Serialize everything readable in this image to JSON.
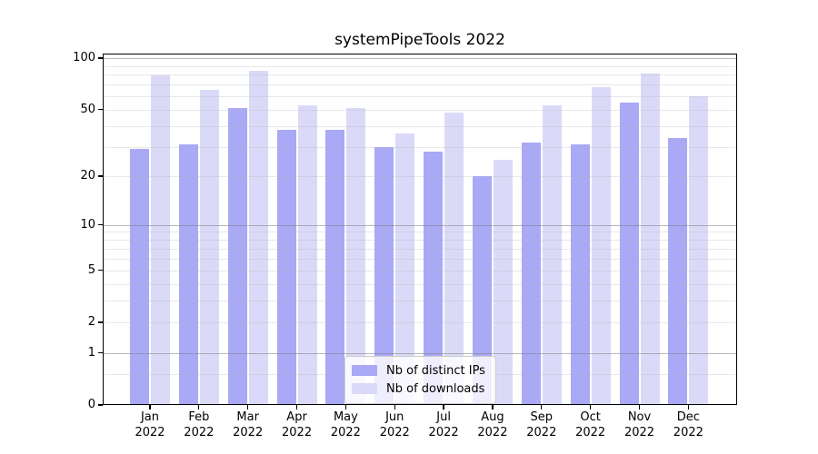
{
  "chart_data": {
    "type": "bar",
    "title": "systemPipeTools 2022",
    "yscale": "log1p",
    "grid": true,
    "categories": [
      "Jan",
      "Feb",
      "Mar",
      "Apr",
      "May",
      "Jun",
      "Jul",
      "Aug",
      "Sep",
      "Oct",
      "Nov",
      "Dec"
    ],
    "x_year_label": "2022",
    "series": [
      {
        "name": "Nb of distinct IPs",
        "color": "#a9a9f6",
        "values": [
          29,
          31,
          51,
          38,
          38,
          30,
          28,
          20,
          32,
          31,
          55,
          34
        ]
      },
      {
        "name": "Nb of downloads",
        "color": "#dadaf8",
        "values": [
          79,
          65,
          84,
          53,
          51,
          36,
          48,
          25,
          53,
          68,
          81,
          60
        ]
      }
    ],
    "y_tick_values": [
      0,
      1,
      2,
      5,
      10,
      20,
      50,
      100
    ],
    "major_gridlines": [
      1,
      10,
      100
    ],
    "minor_gridlines": [
      0.5,
      2,
      3,
      4,
      5,
      6,
      7,
      8,
      9,
      20,
      30,
      40,
      50,
      60,
      70,
      80,
      90
    ],
    "ylim": [
      0,
      106
    ],
    "legend_position": "lower center"
  }
}
